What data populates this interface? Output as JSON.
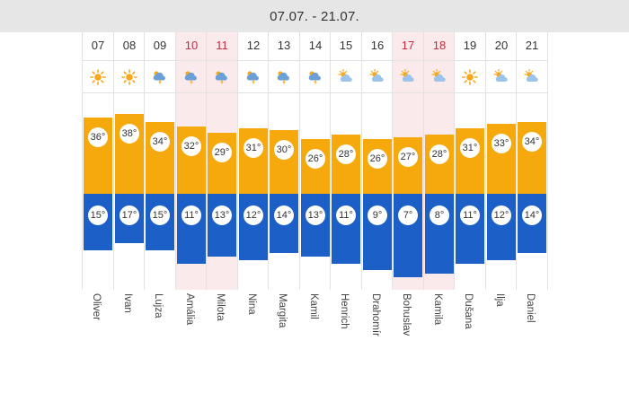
{
  "header": {
    "title": "07.07. - 21.07."
  },
  "days": [
    {
      "day": "07",
      "weekend": false,
      "icon": "sun-icon",
      "high": 36,
      "low": 15,
      "high_label": "36°",
      "low_label": "15°",
      "name": "Oliver"
    },
    {
      "day": "08",
      "weekend": false,
      "icon": "sun-icon",
      "high": 38,
      "low": 17,
      "high_label": "38°",
      "low_label": "17°",
      "name": "Ivan"
    },
    {
      "day": "09",
      "weekend": false,
      "icon": "storm-cloud-icon",
      "high": 34,
      "low": 15,
      "high_label": "34°",
      "low_label": "15°",
      "name": "Lujza"
    },
    {
      "day": "10",
      "weekend": true,
      "icon": "storm-cloud-icon",
      "high": 32,
      "low": 11,
      "high_label": "32°",
      "low_label": "11°",
      "name": "Amália"
    },
    {
      "day": "11",
      "weekend": true,
      "icon": "storm-cloud-icon",
      "high": 29,
      "low": 13,
      "high_label": "29°",
      "low_label": "13°",
      "name": "Milota"
    },
    {
      "day": "12",
      "weekend": false,
      "icon": "storm-cloud-icon",
      "high": 31,
      "low": 12,
      "high_label": "31°",
      "low_label": "12°",
      "name": "Nina"
    },
    {
      "day": "13",
      "weekend": false,
      "icon": "storm-cloud-icon",
      "high": 30,
      "low": 14,
      "high_label": "30°",
      "low_label": "14°",
      "name": "Margita"
    },
    {
      "day": "14",
      "weekend": false,
      "icon": "storm-cloud-icon",
      "high": 26,
      "low": 13,
      "high_label": "26°",
      "low_label": "13°",
      "name": "Kamil"
    },
    {
      "day": "15",
      "weekend": false,
      "icon": "partly-cloudy-icon",
      "high": 28,
      "low": 11,
      "high_label": "28°",
      "low_label": "11°",
      "name": "Henrich"
    },
    {
      "day": "16",
      "weekend": false,
      "icon": "partly-cloudy-icon",
      "high": 26,
      "low": 9,
      "high_label": "26°",
      "low_label": "9°",
      "name": "Drahomír"
    },
    {
      "day": "17",
      "weekend": true,
      "icon": "partly-cloudy-icon",
      "high": 27,
      "low": 7,
      "high_label": "27°",
      "low_label": "7°",
      "name": "Bohuslav"
    },
    {
      "day": "18",
      "weekend": true,
      "icon": "partly-cloudy-icon",
      "high": 28,
      "low": 8,
      "high_label": "28°",
      "low_label": "8°",
      "name": "Kamila"
    },
    {
      "day": "19",
      "weekend": false,
      "icon": "sun-icon",
      "high": 31,
      "low": 11,
      "high_label": "31°",
      "low_label": "11°",
      "name": "Dušana"
    },
    {
      "day": "20",
      "weekend": false,
      "icon": "partly-cloudy-icon",
      "high": 33,
      "low": 12,
      "high_label": "33°",
      "low_label": "12°",
      "name": "Ilja"
    },
    {
      "day": "21",
      "weekend": false,
      "icon": "partly-cloudy-icon",
      "high": 34,
      "low": 14,
      "high_label": "34°",
      "low_label": "14°",
      "name": "Daniel"
    }
  ],
  "colors": {
    "high": "#f6a90c",
    "low": "#1b5fc7",
    "weekend_bg": "#fbeaec",
    "weekend_text": "#c22b3d"
  }
}
